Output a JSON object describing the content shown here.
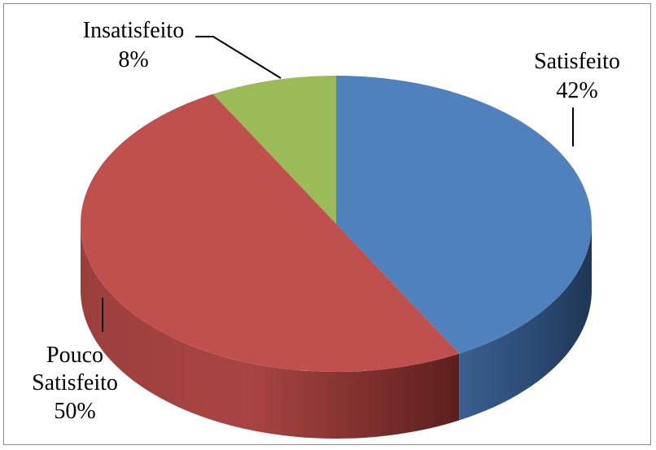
{
  "chart_data": {
    "type": "pie",
    "title": "",
    "style": "3d-pie",
    "categories": [
      "Satisfeito",
      "Pouco Satisfeito",
      "Insatisfeito"
    ],
    "values": [
      42,
      50,
      8
    ],
    "colors": [
      "#4F81BD",
      "#C0504D",
      "#9BBB59"
    ],
    "labels": [
      {
        "name": "Satisfeito",
        "pct": "42%"
      },
      {
        "name": "Pouco Satisfeito",
        "pct": "50%"
      },
      {
        "name": "Insatisfeito",
        "pct": "8%"
      }
    ],
    "legend": "none"
  },
  "labels": {
    "satisfeito_name": "Satisfeito",
    "satisfeito_pct": "42%",
    "pouco_line1": "Pouco",
    "pouco_line2": "Satisfeito",
    "pouco_pct": "50%",
    "insatisfeito_name": "Insatisfeito",
    "insatisfeito_pct": "8%"
  }
}
